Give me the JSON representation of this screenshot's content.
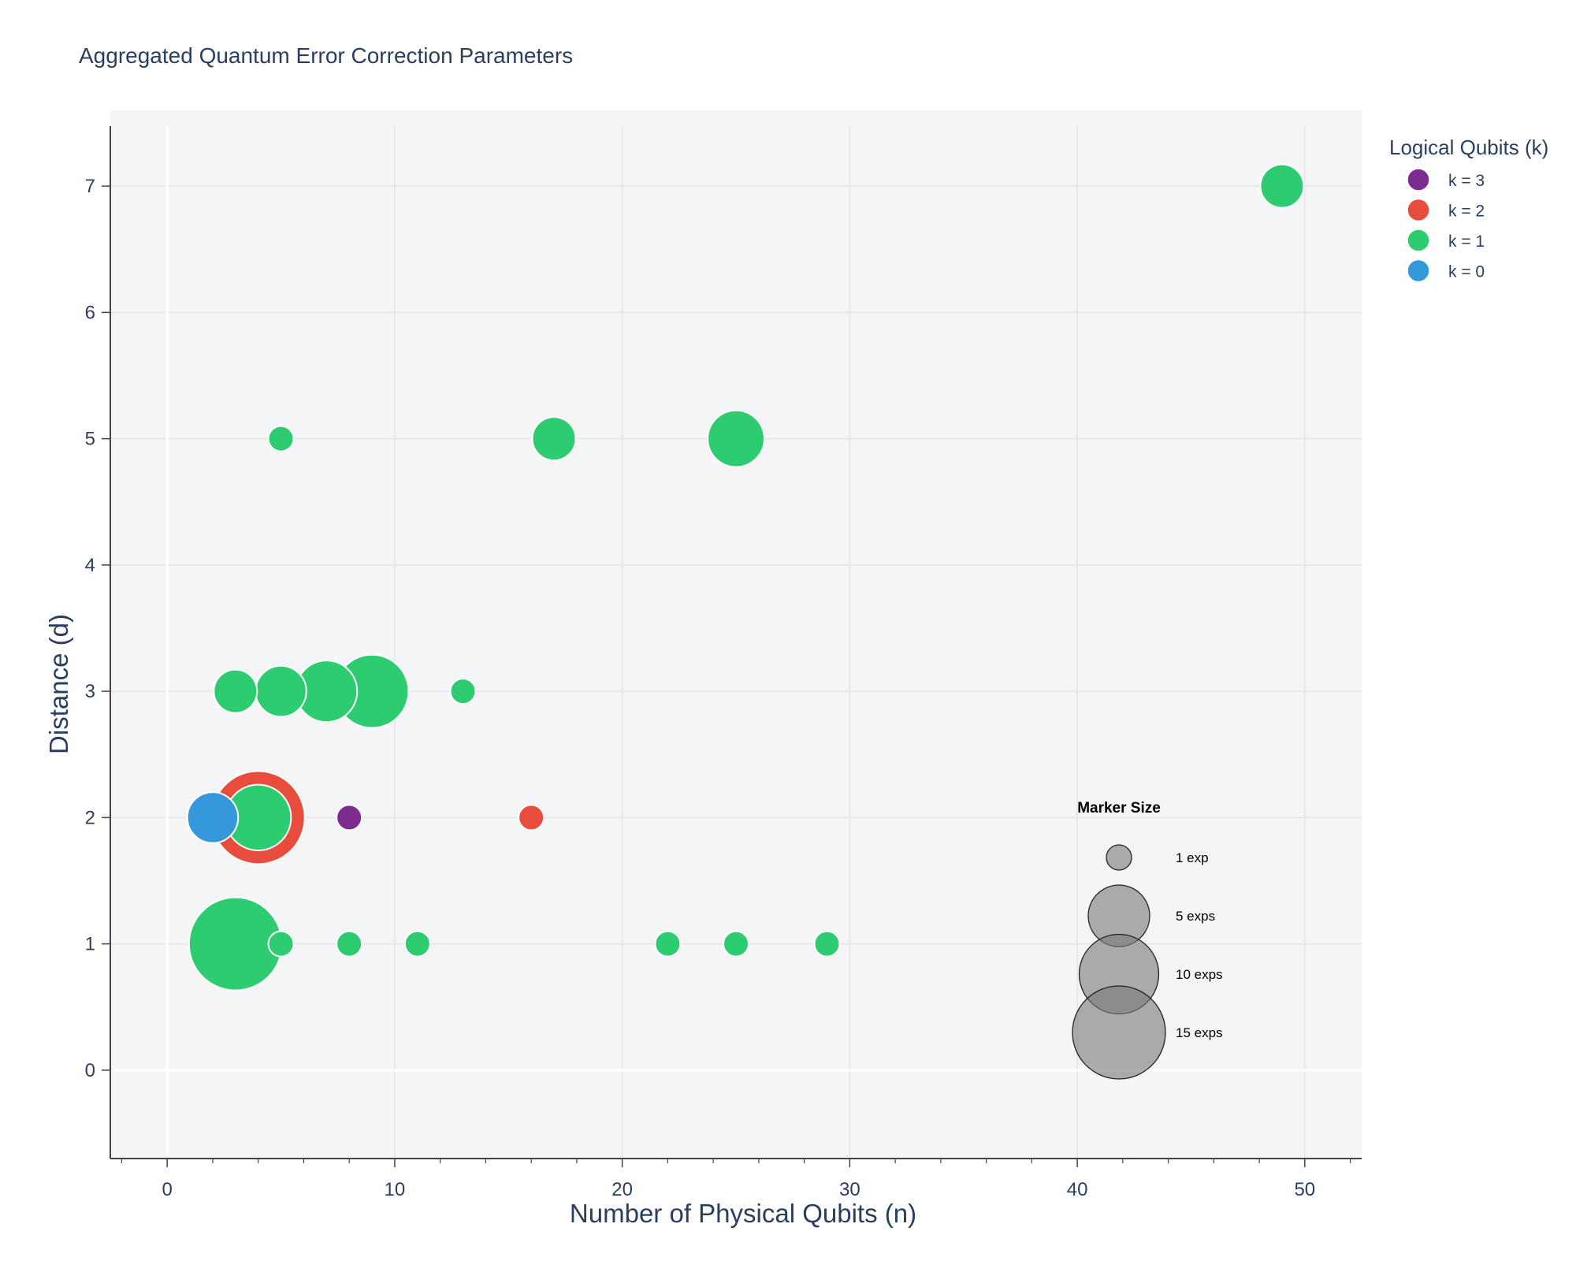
{
  "chart_data": {
    "type": "scatter",
    "title": "Aggregated Quantum Error Correction Parameters",
    "xlabel": "Number of Physical Qubits (n)",
    "ylabel": "Distance (d)",
    "xlim": [
      -2.5,
      52.5
    ],
    "ylim": [
      -0.7,
      7.6
    ],
    "x_ticks": [
      "0",
      "10",
      "20",
      "30",
      "40",
      "50"
    ],
    "y_ticks": [
      "0",
      "1",
      "2",
      "3",
      "4",
      "5",
      "6",
      "7"
    ],
    "grid": true,
    "legend": {
      "title": "Logical Qubits (k)",
      "placement": "right",
      "entries": [
        "k = 3",
        "k = 2",
        "k = 1",
        "k = 0"
      ]
    },
    "series": [
      {
        "name": "k = 3",
        "color": "#7b2c8e",
        "points": [
          {
            "x": 8,
            "y": 2,
            "count": 1
          }
        ]
      },
      {
        "name": "k = 2",
        "color": "#e74c3c",
        "points": [
          {
            "x": 4,
            "y": 2,
            "count": 15
          },
          {
            "x": 16,
            "y": 2,
            "count": 1
          }
        ]
      },
      {
        "name": "k = 1",
        "color": "#2ecc71",
        "points": [
          {
            "x": 49,
            "y": 7,
            "count": 2
          },
          {
            "x": 5,
            "y": 5,
            "count": 1
          },
          {
            "x": 17,
            "y": 5,
            "count": 2
          },
          {
            "x": 25,
            "y": 5,
            "count": 4
          },
          {
            "x": 3,
            "y": 3,
            "count": 2
          },
          {
            "x": 5,
            "y": 3,
            "count": 3
          },
          {
            "x": 7,
            "y": 3,
            "count": 5
          },
          {
            "x": 9,
            "y": 3,
            "count": 8
          },
          {
            "x": 13,
            "y": 3,
            "count": 1
          },
          {
            "x": 4,
            "y": 2,
            "count": 6
          },
          {
            "x": 3,
            "y": 1,
            "count": 15
          },
          {
            "x": 5,
            "y": 1,
            "count": 1
          },
          {
            "x": 8,
            "y": 1,
            "count": 1
          },
          {
            "x": 11,
            "y": 1,
            "count": 1
          },
          {
            "x": 22,
            "y": 1,
            "count": 1
          },
          {
            "x": 25,
            "y": 1,
            "count": 1
          },
          {
            "x": 29,
            "y": 1,
            "count": 1
          }
        ]
      },
      {
        "name": "k = 0",
        "color": "#3498db",
        "points": [
          {
            "x": 2,
            "y": 2,
            "count": 3
          }
        ]
      }
    ],
    "size_legend": {
      "title": "Marker Size",
      "entries": [
        {
          "label": "1 exp",
          "count": 1
        },
        {
          "label": "5 exps",
          "count": 5
        },
        {
          "label": "10 exps",
          "count": 10
        },
        {
          "label": "15 exps",
          "count": 15
        }
      ]
    }
  }
}
